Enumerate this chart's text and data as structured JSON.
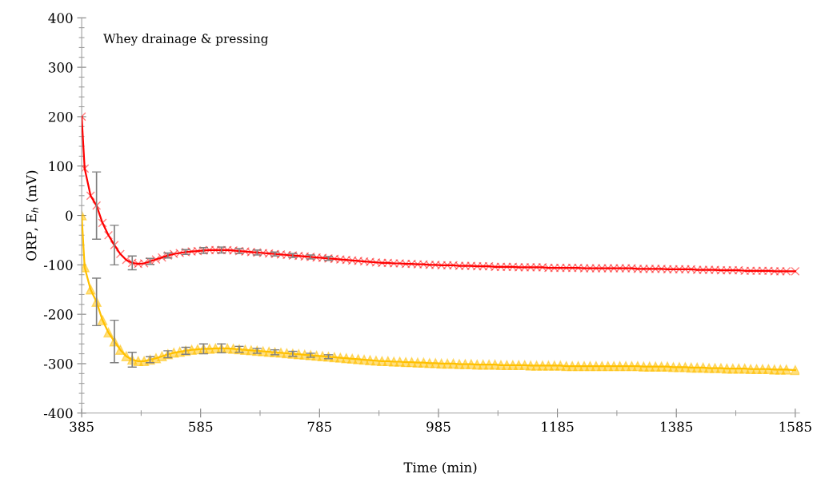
{
  "chart_data": {
    "type": "line",
    "xlabel": "Time (min)",
    "ylabel": "ORP, E$_{h}$ (mV)",
    "annotations": [
      "Whey drainage & pressing"
    ],
    "xlim": [
      385,
      1592
    ],
    "xticks": [
      385,
      585,
      785,
      985,
      1185,
      1385,
      1585
    ],
    "ylim": [
      -400,
      400
    ],
    "yticks": [
      -400,
      -300,
      -200,
      -100,
      0,
      100,
      200,
      300,
      400
    ],
    "grid": false,
    "legend": false,
    "line_style": "solid",
    "x": [
      385,
      390,
      400,
      410,
      420,
      430,
      440,
      450,
      460,
      470,
      480,
      490,
      500,
      510,
      520,
      530,
      540,
      550,
      560,
      570,
      580,
      590,
      600,
      610,
      620,
      630,
      640,
      650,
      660,
      670,
      680,
      690,
      700,
      710,
      720,
      730,
      740,
      750,
      760,
      770,
      780,
      790,
      800,
      810,
      820,
      830,
      840,
      850,
      860,
      870,
      880,
      890,
      900,
      910,
      920,
      930,
      940,
      950,
      960,
      970,
      980,
      990,
      1000,
      1010,
      1020,
      1030,
      1040,
      1050,
      1060,
      1070,
      1080,
      1090,
      1100,
      1110,
      1120,
      1130,
      1140,
      1150,
      1160,
      1170,
      1180,
      1190,
      1200,
      1210,
      1220,
      1230,
      1240,
      1250,
      1260,
      1270,
      1280,
      1290,
      1300,
      1310,
      1320,
      1330,
      1340,
      1350,
      1360,
      1370,
      1380,
      1390,
      1400,
      1410,
      1420,
      1430,
      1440,
      1450,
      1460,
      1470,
      1480,
      1490,
      1500,
      1510,
      1520,
      1530,
      1540,
      1550,
      1560,
      1570,
      1585
    ],
    "series": [
      {
        "color": "#ff0000",
        "marker": "cross",
        "values": [
          200,
          95,
          40,
          20,
          -15,
          -40,
          -60,
          -78,
          -90,
          -96,
          -98,
          -97,
          -93,
          -89,
          -85,
          -81,
          -78,
          -76,
          -74,
          -73,
          -72,
          -71,
          -70,
          -70,
          -70,
          -70,
          -71,
          -72,
          -73,
          -74,
          -75,
          -76,
          -77,
          -78,
          -79,
          -80,
          -81,
          -82,
          -83,
          -84,
          -85,
          -86,
          -87,
          -88,
          -89,
          -90,
          -91,
          -92,
          -93,
          -94,
          -95,
          -96,
          -96,
          -97,
          -97,
          -98,
          -98,
          -99,
          -99,
          -100,
          -100,
          -101,
          -101,
          -101,
          -102,
          -102,
          -102,
          -103,
          -103,
          -103,
          -104,
          -104,
          -104,
          -104,
          -105,
          -105,
          -105,
          -105,
          -105,
          -106,
          -106,
          -106,
          -106,
          -106,
          -106,
          -107,
          -107,
          -107,
          -107,
          -107,
          -107,
          -107,
          -107,
          -107,
          -108,
          -108,
          -108,
          -108,
          -108,
          -109,
          -109,
          -109,
          -109,
          -109,
          -110,
          -110,
          -110,
          -110,
          -111,
          -111,
          -111,
          -111,
          -112,
          -112,
          -112,
          -112,
          -112,
          -113,
          -113,
          -113,
          -113
        ],
        "errors": [
          null,
          null,
          null,
          68,
          null,
          null,
          40,
          null,
          null,
          14,
          null,
          null,
          6,
          null,
          null,
          5,
          null,
          null,
          5,
          null,
          null,
          6,
          null,
          null,
          6,
          null,
          null,
          5,
          null,
          null,
          5,
          null,
          null,
          4,
          null,
          null,
          4,
          null,
          null,
          4,
          null,
          null,
          4,
          null,
          null,
          null,
          null,
          null,
          null,
          null,
          null,
          null,
          null,
          null,
          null,
          null,
          null,
          null,
          null,
          null,
          null,
          null,
          null,
          null,
          null,
          null,
          null,
          null,
          null,
          null,
          null,
          null,
          null,
          null,
          null,
          null,
          null,
          null,
          null,
          null,
          null,
          null,
          null,
          null,
          null,
          null,
          null,
          null,
          null,
          null,
          null,
          null,
          null,
          null,
          null,
          null,
          null,
          null,
          null,
          null,
          null,
          null,
          null,
          null,
          null,
          null,
          null,
          null,
          null,
          null,
          null,
          null,
          null,
          null,
          null,
          null,
          null,
          null,
          null,
          null,
          null
        ]
      },
      {
        "color": "#ffc000",
        "marker": "triangle",
        "values": [
          0,
          -105,
          -150,
          -175,
          -212,
          -237,
          -255,
          -272,
          -285,
          -292,
          -295,
          -295,
          -292,
          -289,
          -285,
          -281,
          -278,
          -276,
          -274,
          -272,
          -271,
          -270,
          -270,
          -269,
          -269,
          -269,
          -270,
          -271,
          -272,
          -273,
          -274,
          -275,
          -276,
          -277,
          -278,
          -279,
          -280,
          -281,
          -282,
          -283,
          -284,
          -285,
          -286,
          -287,
          -288,
          -289,
          -290,
          -291,
          -292,
          -293,
          -294,
          -295,
          -295,
          -296,
          -296,
          -297,
          -297,
          -298,
          -298,
          -299,
          -299,
          -300,
          -300,
          -300,
          -301,
          -301,
          -301,
          -302,
          -302,
          -302,
          -302,
          -303,
          -303,
          -303,
          -303,
          -303,
          -304,
          -304,
          -304,
          -304,
          -304,
          -304,
          -305,
          -305,
          -305,
          -305,
          -305,
          -305,
          -305,
          -305,
          -305,
          -305,
          -305,
          -305,
          -305,
          -306,
          -306,
          -306,
          -306,
          -306,
          -307,
          -307,
          -307,
          -308,
          -308,
          -308,
          -309,
          -309,
          -309,
          -310,
          -310,
          -310,
          -310,
          -311,
          -311,
          -311,
          -311,
          -312,
          -312,
          -312,
          -313
        ],
        "errors": [
          null,
          null,
          null,
          48,
          null,
          null,
          43,
          null,
          null,
          15,
          null,
          null,
          6,
          null,
          null,
          7,
          null,
          null,
          7,
          null,
          null,
          10,
          null,
          null,
          9,
          null,
          null,
          6,
          null,
          null,
          5,
          null,
          null,
          5,
          null,
          null,
          5,
          null,
          null,
          4,
          null,
          null,
          4,
          null,
          null,
          null,
          null,
          null,
          null,
          null,
          null,
          null,
          null,
          null,
          null,
          null,
          null,
          null,
          null,
          null,
          null,
          null,
          null,
          null,
          null,
          null,
          null,
          null,
          null,
          null,
          null,
          null,
          null,
          null,
          null,
          null,
          null,
          null,
          null,
          null,
          null,
          null,
          null,
          null,
          null,
          null,
          null,
          null,
          null,
          null,
          null,
          null,
          null,
          null,
          null,
          null,
          null,
          null,
          null,
          null,
          null,
          null,
          null,
          null,
          null,
          null,
          null,
          null,
          null,
          null,
          null,
          null,
          null,
          null,
          null,
          null,
          null,
          null,
          null,
          null,
          null
        ]
      }
    ]
  }
}
